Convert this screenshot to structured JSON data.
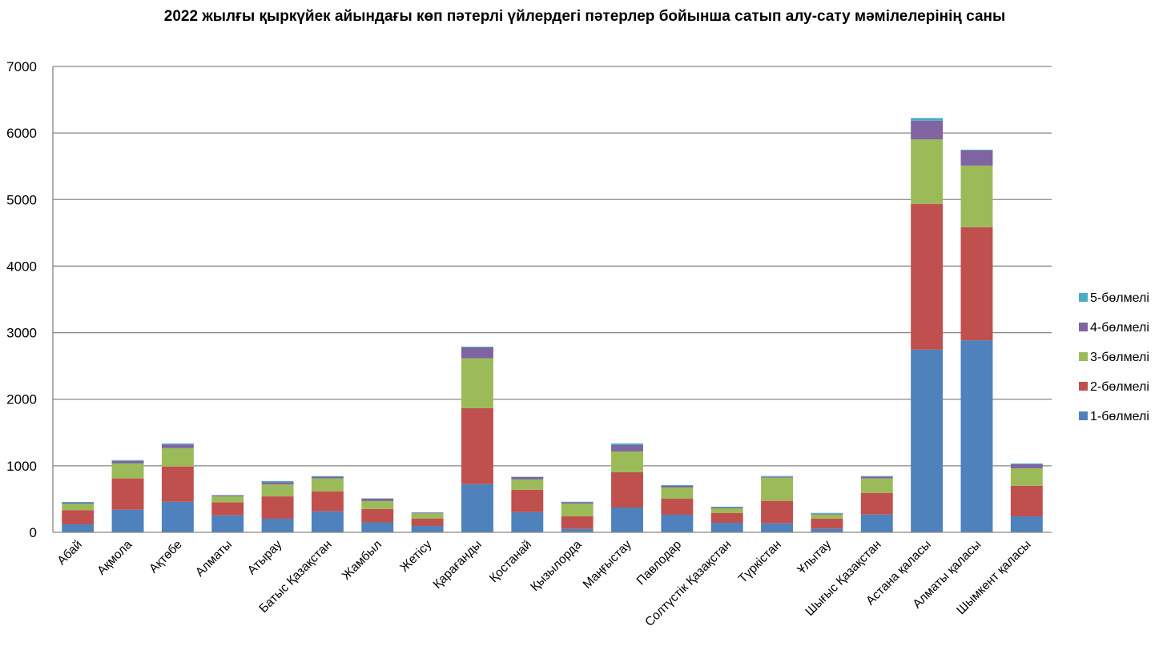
{
  "chart_data": {
    "type": "bar",
    "stacked": true,
    "title": "2022 жылғы қыркүйек айындағы көп пәтерлі үйлердегі пәтерлер бойынша сатып алу-сату  мәмілелерінің саны",
    "xlabel": "",
    "ylabel": "",
    "ylim": [
      0,
      7000
    ],
    "yticks": [
      0,
      1000,
      2000,
      3000,
      4000,
      5000,
      6000,
      7000
    ],
    "grid": true,
    "legend_position": "right",
    "categories": [
      "Абай",
      "Ақмола",
      "Ақтөбе",
      "Алматы",
      "Атырау",
      "Батыс Қазақстан",
      "Жамбыл",
      "Жетісу",
      "Қарағанды",
      "Қостанай",
      "Қызылорда",
      "Маңғыстау",
      "Павлодар",
      "Солтүстік Қазақстан",
      "Түркістан",
      "Ұлытау",
      "Шығыс Қазақстан",
      "Астана қаласы",
      "Алматы қаласы",
      "Шымкент қаласы"
    ],
    "series": [
      {
        "name": "1-бөлмелі",
        "color": "#4F81BD",
        "values": [
          120,
          340,
          460,
          255,
          205,
          315,
          150,
          96,
          725,
          305,
          52,
          373,
          265,
          144,
          136,
          56,
          268,
          2745,
          2885,
          240
        ]
      },
      {
        "name": "2-бөлмелі",
        "color": "#C0504D",
        "values": [
          213,
          470,
          530,
          195,
          335,
          300,
          200,
          109,
          1140,
          335,
          188,
          529,
          240,
          145,
          337,
          152,
          325,
          2190,
          1700,
          460
        ]
      },
      {
        "name": "3-бөлмелі",
        "color": "#9BBB59",
        "values": [
          97,
          225,
          275,
          90,
          180,
          195,
          120,
          80,
          750,
          155,
          193,
          313,
          169,
          72,
          349,
          60,
          217,
          970,
          925,
          262
        ]
      },
      {
        "name": "4-бөлмелі",
        "color": "#8064A2",
        "values": [
          15,
          38,
          55,
          15,
          35,
          25,
          35,
          12,
          165,
          35,
          20,
          96,
          24,
          12,
          12,
          12,
          28,
          280,
          230,
          60
        ]
      },
      {
        "name": "5-бөлмелі",
        "color": "#4BACC6",
        "values": [
          12,
          12,
          15,
          5,
          15,
          10,
          5,
          3,
          10,
          5,
          7,
          24,
          12,
          12,
          12,
          12,
          8,
          40,
          10,
          12
        ]
      }
    ],
    "legend_order": [
      "5-бөлмелі",
      "4-бөлмелі",
      "3-бөлмелі",
      "2-бөлмелі",
      "1-бөлмелі"
    ]
  }
}
